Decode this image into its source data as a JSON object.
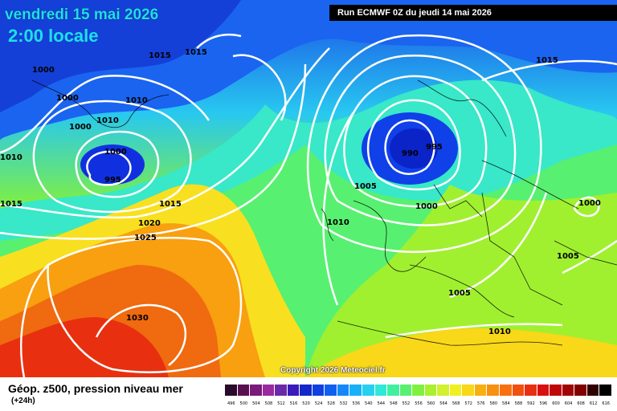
{
  "header": {
    "date": "vendredi 15 mai 2026",
    "time": "2:00 locale",
    "run": "Run ECMWF 0Z du jeudi 14 mai 2026"
  },
  "map": {
    "copyright": "Copyright 2026 Meteociel.fr",
    "isobars": {
      "l1000": "1000",
      "l1005": "1005",
      "l1010": "1010",
      "l1015": "1015",
      "l1020": "1020",
      "l1025": "1025",
      "l1030": "1030",
      "l995": "995",
      "l990": "990"
    }
  },
  "legend": {
    "title": "Géop. z500, pression niveau mer",
    "subtitle": "(+24h)",
    "scale_labels": [
      "496",
      "500",
      "504",
      "508",
      "512",
      "516",
      "520",
      "524",
      "528",
      "532",
      "536",
      "540",
      "544",
      "548",
      "552",
      "556",
      "560",
      "564",
      "568",
      "572",
      "576",
      "580",
      "584",
      "588",
      "592",
      "596",
      "600",
      "604",
      "608",
      "612",
      "616"
    ],
    "scale_colors": [
      "#2a0a2a",
      "#5a1050",
      "#7a1a7a",
      "#9a2aa0",
      "#6a2aa8",
      "#3a1ab8",
      "#1428c8",
      "#1040e0",
      "#1060f0",
      "#1488f8",
      "#18b0f8",
      "#28d0f0",
      "#30e8d8",
      "#40f0a0",
      "#58f070",
      "#80f040",
      "#a8f030",
      "#d0f030",
      "#f0f020",
      "#f8d818",
      "#f8b010",
      "#f89010",
      "#f87010",
      "#f05010",
      "#e83010",
      "#d81010",
      "#c00808",
      "#a00404",
      "#800000",
      "#300000",
      "#000000"
    ]
  }
}
